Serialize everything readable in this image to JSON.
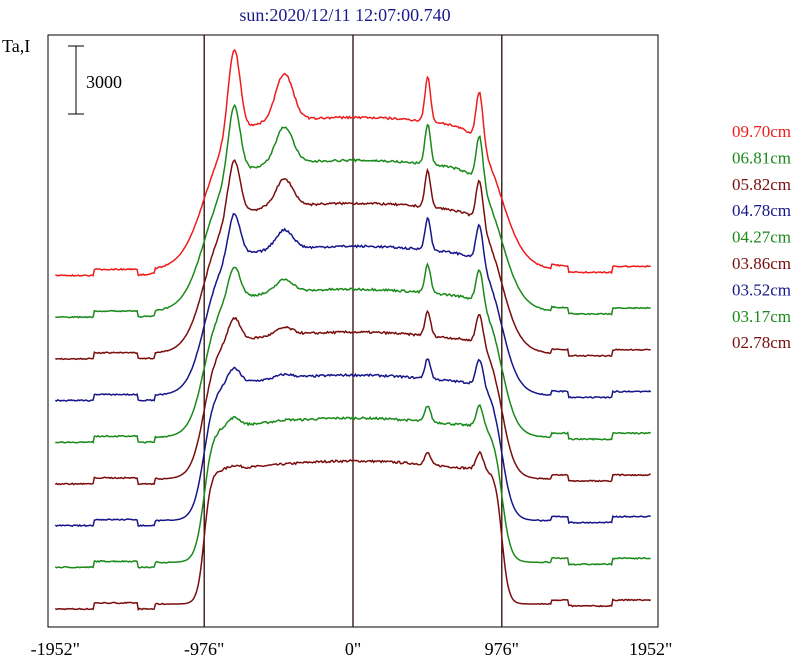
{
  "chart_data": {
    "type": "line",
    "title": "sun:2020/12/11 12:07:00.740",
    "ylabel": "Ta,I",
    "xlabel": "",
    "xlim": [
      -2000,
      2000
    ],
    "x_ticks": [
      -1952,
      -976,
      0,
      976,
      1952
    ],
    "x_tick_labels": [
      "-1952\"",
      "-976\"",
      "0\"",
      "976\"",
      "1952\""
    ],
    "vlines": [
      -976,
      0,
      976
    ],
    "scale_bar": {
      "value": 3000,
      "label": "3000"
    },
    "grid": false,
    "legend_position": "right",
    "series_order_bottom_to_top": [
      "02.78cm",
      "03.17cm",
      "03.52cm",
      "03.86cm",
      "04.27cm",
      "04.78cm",
      "05.82cm",
      "06.81cm",
      "09.70cm"
    ],
    "series": [
      {
        "name": "09.70cm",
        "color": "#ee1c1c"
      },
      {
        "name": "06.81cm",
        "color": "#1a8a1a"
      },
      {
        "name": "05.82cm",
        "color": "#7a0d0d"
      },
      {
        "name": "04.78cm",
        "color": "#16168a"
      },
      {
        "name": "04.27cm",
        "color": "#1a8a1a"
      },
      {
        "name": "03.86cm",
        "color": "#7a0d0d"
      },
      {
        "name": "03.52cm",
        "color": "#16168a"
      },
      {
        "name": "03.17cm",
        "color": "#1a8a1a"
      },
      {
        "name": "02.78cm",
        "color": "#7a0d0d"
      }
    ]
  }
}
